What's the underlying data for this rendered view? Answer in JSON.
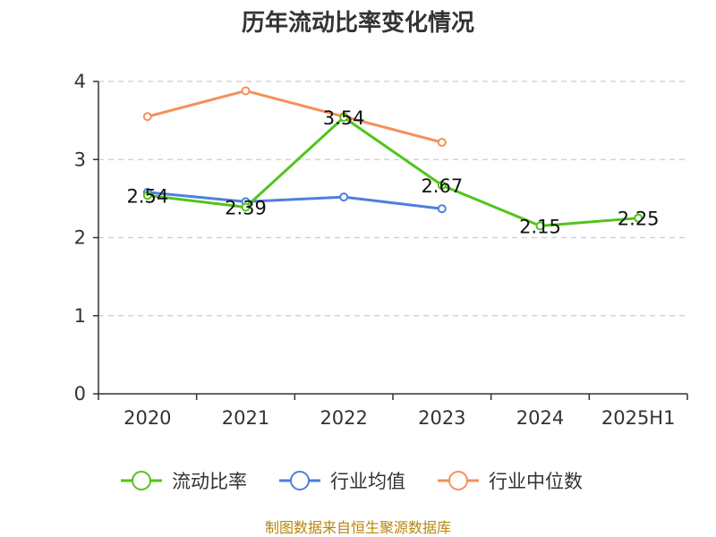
{
  "chart_data": {
    "type": "line",
    "title": "历年流动比率变化情况",
    "categories": [
      "2020",
      "2021",
      "2022",
      "2023",
      "2024",
      "2025H1"
    ],
    "ylim": [
      0,
      4
    ],
    "yticks": [
      0,
      1,
      2,
      3,
      4
    ],
    "grid": true,
    "legend_position": "bottom",
    "series": [
      {
        "name": "流动比率",
        "color": "#52c41a",
        "values": [
          2.54,
          2.39,
          3.54,
          2.67,
          2.15,
          2.25
        ],
        "labels": [
          "2.54",
          "2.39",
          "3.54",
          "2.67",
          "2.15",
          "2.25"
        ]
      },
      {
        "name": "行业均值",
        "color": "#4e7fde",
        "values": [
          2.58,
          2.46,
          2.52,
          2.37,
          null,
          null
        ]
      },
      {
        "name": "行业中位数",
        "color": "#f5905a",
        "values": [
          3.55,
          3.88,
          3.55,
          3.22,
          null,
          null
        ]
      }
    ]
  },
  "source": "制图数据来自恒生聚源数据库"
}
